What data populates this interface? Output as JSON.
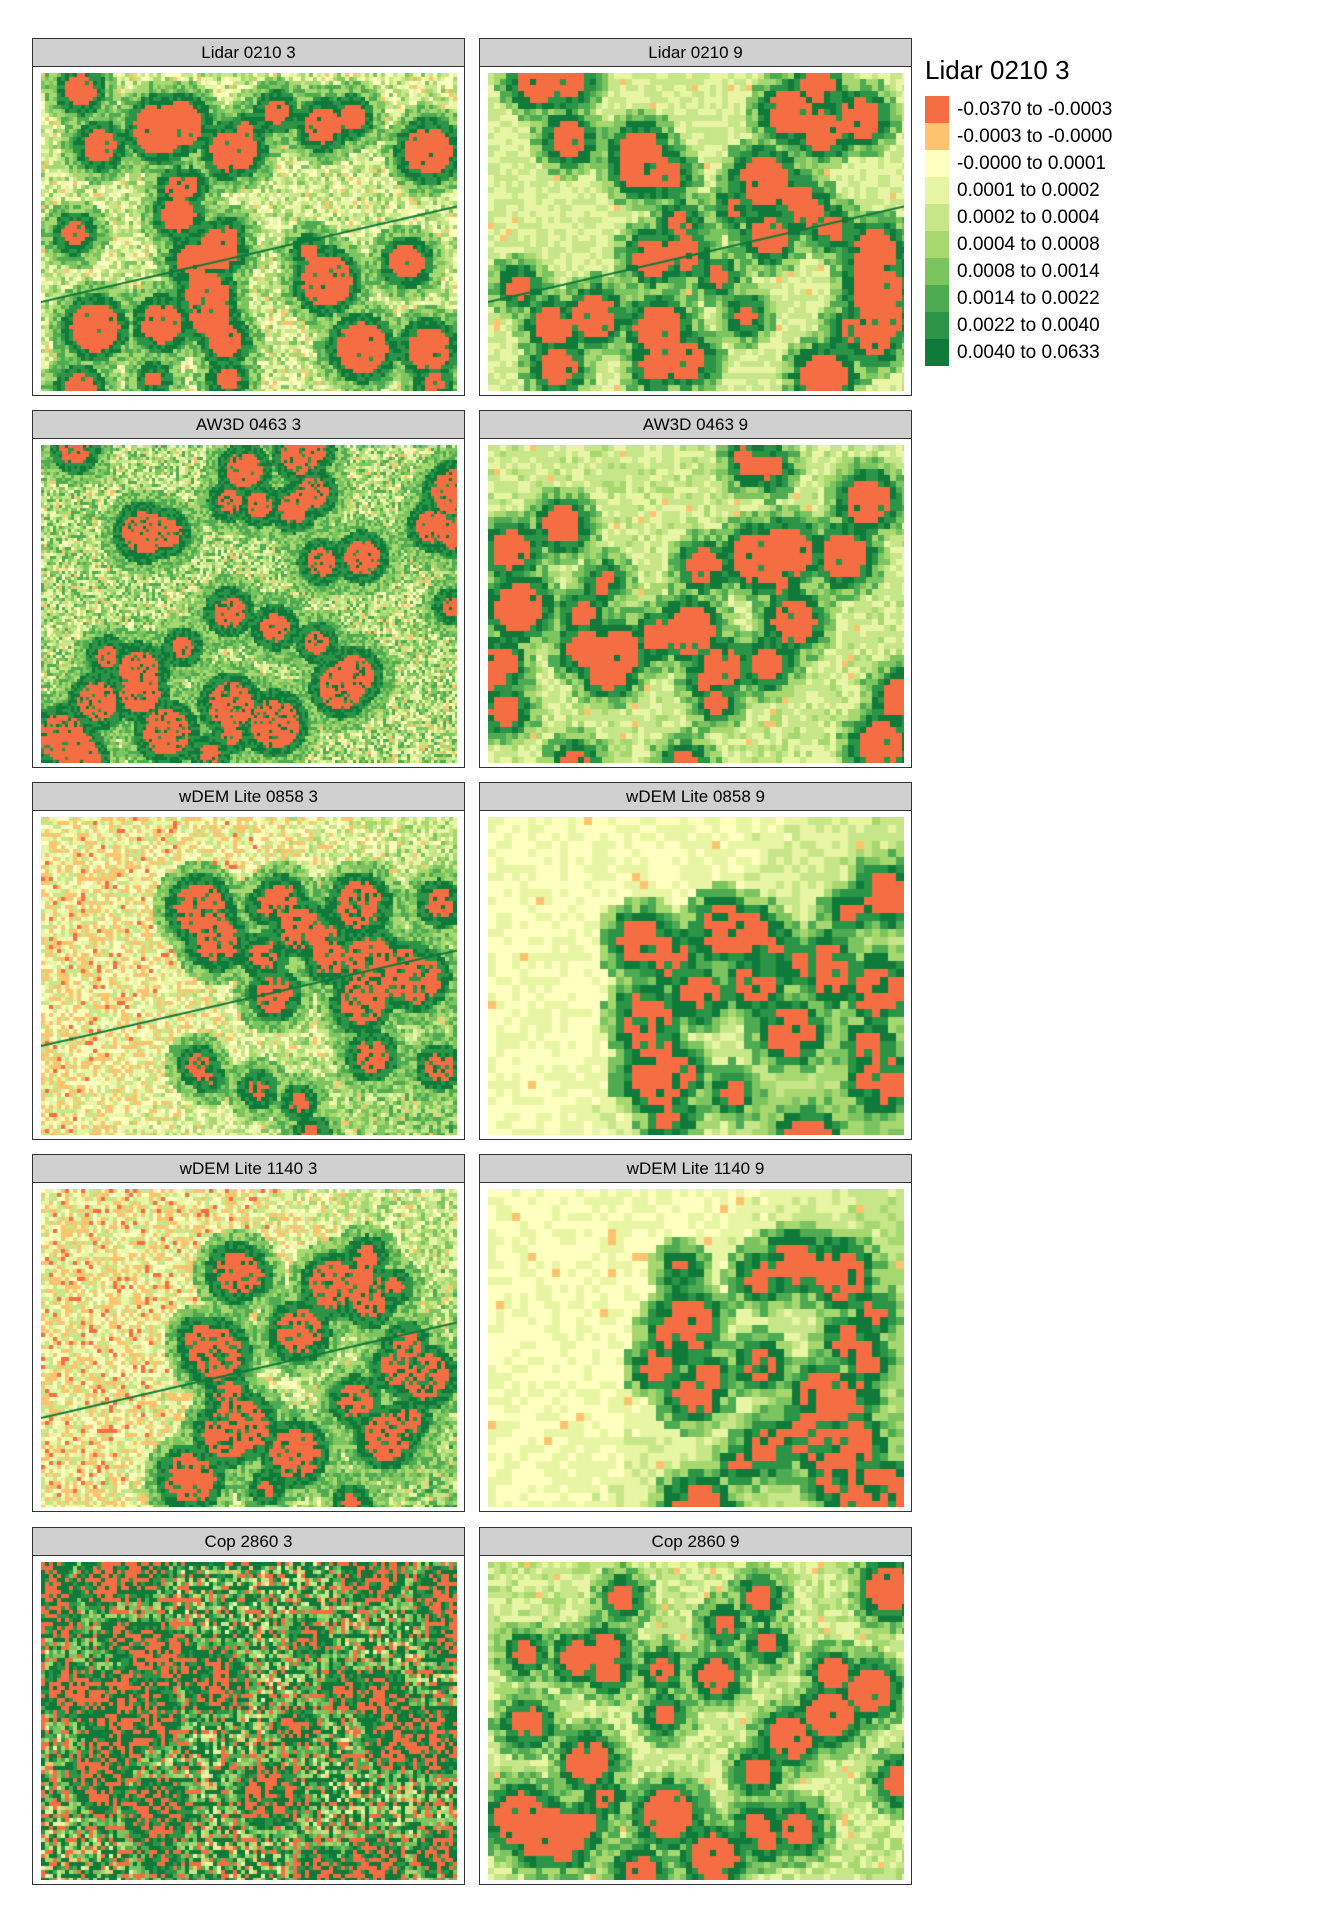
{
  "legend": {
    "title": "Lidar 0210 3",
    "items": [
      {
        "label": "-0.0370 to -0.0003",
        "color": "#f46d43"
      },
      {
        "label": "-0.0003 to -0.0000",
        "color": "#fdc46f"
      },
      {
        "label": "-0.0000 to 0.0001",
        "color": "#ffffbf"
      },
      {
        "label": "0.0001 to 0.0002",
        "color": "#e8f5a5"
      },
      {
        "label": "0.0002 to 0.0004",
        "color": "#c7e68a"
      },
      {
        "label": "0.0004 to 0.0008",
        "color": "#a6d86f"
      },
      {
        "label": "0.0008 to 0.0014",
        "color": "#7cc45f"
      },
      {
        "label": "0.0014 to 0.0022",
        "color": "#4eab52"
      },
      {
        "label": "0.0022 to 0.0040",
        "color": "#2b9446"
      },
      {
        "label": "0.0040 to 0.0633",
        "color": "#0f7a3a"
      }
    ]
  },
  "panels": [
    {
      "title": "Lidar 0210 3"
    },
    {
      "title": "Lidar 0210 9"
    },
    {
      "title": "AW3D 0463 3"
    },
    {
      "title": "AW3D 0463 9"
    },
    {
      "title": "wDEM Lite 0858 3"
    },
    {
      "title": "wDEM Lite 0858 9"
    },
    {
      "title": "wDEM Lite 1140 3"
    },
    {
      "title": "wDEM Lite 1140 9"
    },
    {
      "title": "Cop 2860 3"
    },
    {
      "title": "Cop 2860 9"
    }
  ],
  "chart_data": {
    "type": "heatmap",
    "legend_placement": "top-right"
  }
}
